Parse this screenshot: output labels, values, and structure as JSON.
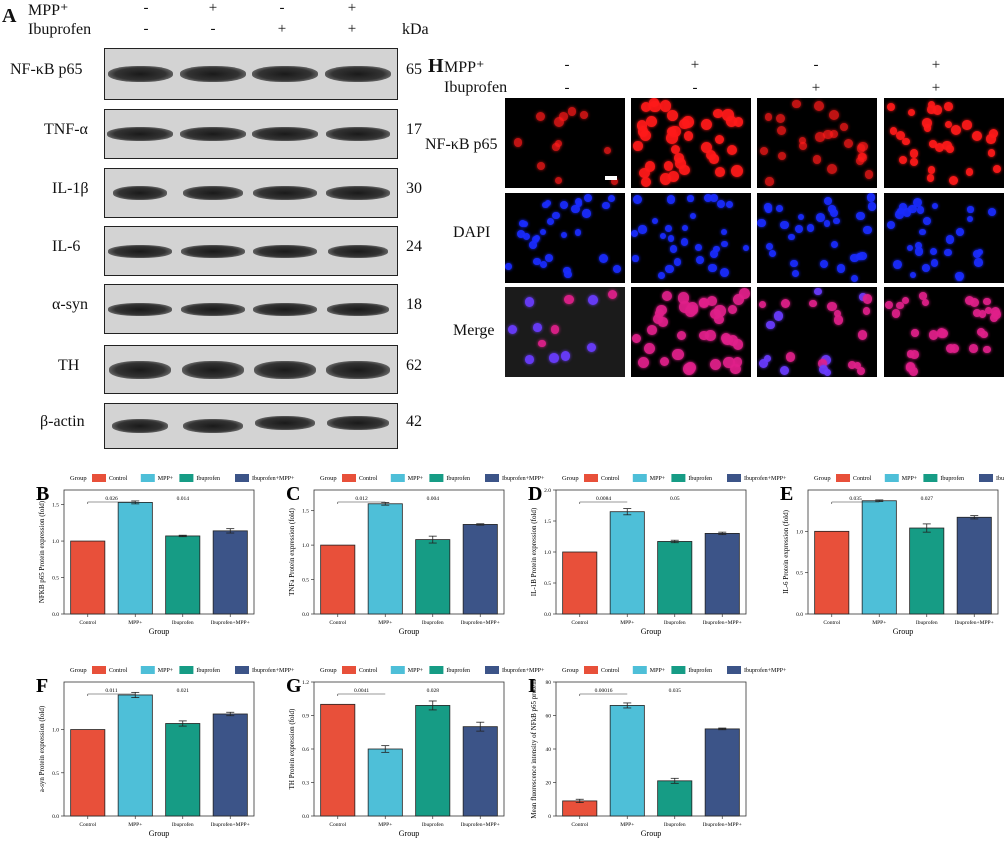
{
  "panel_a": {
    "letter": "A",
    "treatments": [
      {
        "name": "MPP⁺",
        "signs": [
          "-",
          "+",
          "-",
          "+"
        ]
      },
      {
        "name": "Ibuprofen",
        "signs": [
          "-",
          "-",
          "+",
          "+"
        ]
      }
    ],
    "kda_header": "kDa",
    "blots": [
      {
        "label": "NF-κB p65",
        "kda": "65"
      },
      {
        "label": "TNF-α",
        "kda": "17"
      },
      {
        "label": "IL-1β",
        "kda": "30"
      },
      {
        "label": "IL-6",
        "kda": "24"
      },
      {
        "label": "α-syn",
        "kda": "18"
      },
      {
        "label": "TH",
        "kda": "62"
      },
      {
        "label": "β-actin",
        "kda": "42"
      }
    ]
  },
  "panel_h": {
    "letter": "H",
    "treatments": [
      {
        "name": "MPP⁺",
        "signs": [
          "-",
          "+",
          "-",
          "+"
        ]
      },
      {
        "name": "Ibuprofen",
        "signs": [
          "-",
          "-",
          "+",
          "+"
        ]
      }
    ],
    "rows": [
      "NF-κB p65",
      "DAPI",
      "Merge"
    ],
    "colors": {
      "nfkb": "#ff1a1a",
      "dapi": "#1a2cff",
      "merge": "#e0208a"
    }
  },
  "legend": {
    "title": "Group",
    "entries": [
      {
        "name": "Control",
        "color": "#e8503a"
      },
      {
        "name": "MPP+",
        "color": "#4ebfd8"
      },
      {
        "name": "Ibuprofen",
        "color": "#169c85"
      },
      {
        "name": "Ibuprofen+MPP+",
        "color": "#3c5488"
      }
    ]
  },
  "chart_data": [
    {
      "letter": "B",
      "type": "bar",
      "categories": [
        "Control",
        "MPP+",
        "Ibuprofen",
        "Ibuprofen+MPP+"
      ],
      "values": [
        1.0,
        1.53,
        1.07,
        1.14
      ],
      "errors": [
        0,
        0.02,
        0.01,
        0.03
      ],
      "xlabel": "Group",
      "ylabel": "NFKB p65 Protein expression (fold)",
      "ylim": [
        0,
        1.7
      ],
      "yticks": [
        0.0,
        0.5,
        1.0,
        1.5
      ],
      "annotations": [
        {
          "text": "0.026",
          "bracket": [
            0,
            1
          ]
        },
        {
          "text": "0.014",
          "at": 2
        }
      ]
    },
    {
      "letter": "C",
      "type": "bar",
      "categories": [
        "Control",
        "MPP+",
        "Ibuprofen",
        "Ibuprofen+MPP+"
      ],
      "values": [
        1.0,
        1.6,
        1.08,
        1.3
      ],
      "errors": [
        0,
        0.02,
        0.05,
        0.01
      ],
      "xlabel": "Group",
      "ylabel": "TNFa Protein expression (fold)",
      "ylim": [
        0,
        1.8
      ],
      "yticks": [
        0.0,
        0.5,
        1.0,
        1.5
      ],
      "annotations": [
        {
          "text": "0.012",
          "bracket": [
            0,
            1
          ]
        },
        {
          "text": "0.004",
          "at": 2
        }
      ]
    },
    {
      "letter": "D",
      "type": "bar",
      "categories": [
        "Control",
        "MPP+",
        "Ibuprofen",
        "Ibuprofen+MPP+"
      ],
      "values": [
        1.0,
        1.65,
        1.17,
        1.3
      ],
      "errors": [
        0,
        0.05,
        0.02,
        0.02
      ],
      "xlabel": "Group",
      "ylabel": "IL-1B Protein expression (fold)",
      "ylim": [
        0,
        2.0
      ],
      "yticks": [
        0.0,
        0.5,
        1.0,
        1.5,
        2.0
      ],
      "annotations": [
        {
          "text": "0.0084",
          "bracket": [
            0,
            1
          ]
        },
        {
          "text": "0.05",
          "at": 2
        }
      ]
    },
    {
      "letter": "E",
      "type": "bar",
      "categories": [
        "Control",
        "MPP+",
        "Ibuprofen",
        "Ibuprofen+MPP+"
      ],
      "values": [
        1.0,
        1.37,
        1.04,
        1.17
      ],
      "errors": [
        0,
        0.01,
        0.05,
        0.02
      ],
      "xlabel": "Group",
      "ylabel": "IL-6 Protein expression (fold)",
      "ylim": [
        0,
        1.5
      ],
      "yticks": [
        0.0,
        0.5,
        1.0
      ],
      "annotations": [
        {
          "text": "0.035",
          "bracket": [
            0,
            1
          ]
        },
        {
          "text": "0.027",
          "at": 2
        }
      ]
    },
    {
      "letter": "F",
      "type": "bar",
      "categories": [
        "Control",
        "MPP+",
        "Ibuprofen",
        "Ibuprofen+MPP+"
      ],
      "values": [
        1.0,
        1.4,
        1.07,
        1.18
      ],
      "errors": [
        0,
        0.03,
        0.03,
        0.02
      ],
      "xlabel": "Group",
      "ylabel": "a-syn Protein expression (fold)",
      "ylim": [
        0,
        1.55
      ],
      "yticks": [
        0.0,
        0.5,
        1.0
      ],
      "annotations": [
        {
          "text": "0.011",
          "bracket": [
            0,
            1
          ]
        },
        {
          "text": "0.021",
          "at": 2
        }
      ]
    },
    {
      "letter": "G",
      "type": "bar",
      "categories": [
        "Control",
        "MPP+",
        "Ibuprofen",
        "Ibuprofen+MPP+"
      ],
      "values": [
        1.0,
        0.6,
        0.99,
        0.8
      ],
      "errors": [
        0,
        0.03,
        0.04,
        0.04
      ],
      "xlabel": "Group",
      "ylabel": "TH Protein expression (fold)",
      "ylim": [
        0,
        1.2
      ],
      "yticks": [
        0.0,
        0.3,
        0.6,
        0.9,
        1.2
      ],
      "annotations": [
        {
          "text": "0.0041",
          "bracket": [
            0,
            1
          ]
        },
        {
          "text": "0.028",
          "at": 2
        }
      ]
    },
    {
      "letter": "I",
      "type": "bar",
      "categories": [
        "Control",
        "MPP+",
        "Ibuprofen",
        "Ibuprofen+MPP+"
      ],
      "values": [
        9,
        66,
        21,
        52
      ],
      "errors": [
        1,
        1.5,
        1.5,
        0.5
      ],
      "xlabel": "Group",
      "ylabel": "Mean fluorescence intensity of NFkB p65 protein",
      "ylim": [
        0,
        80
      ],
      "yticks": [
        0,
        20,
        40,
        60,
        80
      ],
      "annotations": [
        {
          "text": "0.00016",
          "bracket": [
            0,
            1
          ]
        },
        {
          "text": "0.035",
          "at": 2
        }
      ]
    }
  ]
}
